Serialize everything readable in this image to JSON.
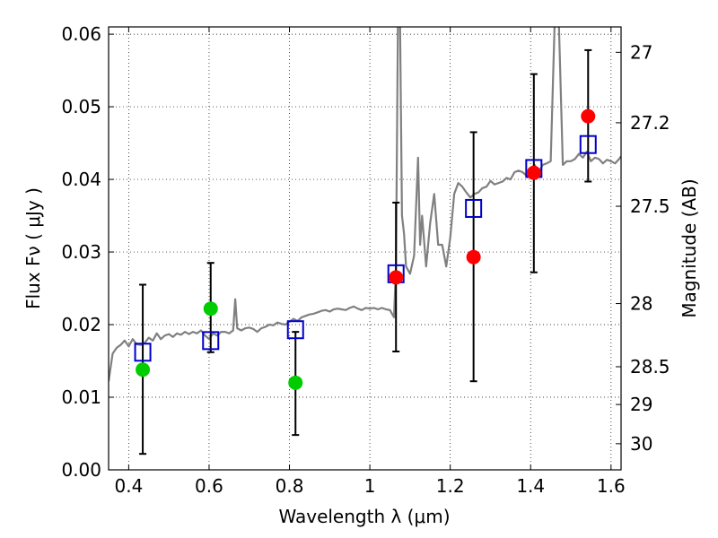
{
  "chart_data": {
    "type": "scatter",
    "xlabel": "Wavelength  λ (μm)",
    "ylabel": "Flux  Fν  ( μJy )",
    "y2label": "Magnitude (AB)",
    "xlim": [
      0.35,
      1.625
    ],
    "ylim": [
      0.0,
      0.061
    ],
    "grid": true,
    "x_ticks": [
      0.4,
      0.6,
      0.8,
      1.0,
      1.2,
      1.4,
      1.6
    ],
    "x_tick_labels": [
      "0.4",
      "0.6",
      "0.8",
      "1",
      "1.2",
      "1.4",
      "1.6"
    ],
    "y_ticks": [
      0.0,
      0.01,
      0.02,
      0.03,
      0.04,
      0.05,
      0.06
    ],
    "y_tick_labels": [
      "0.00",
      "0.01",
      "0.02",
      "0.03",
      "0.04",
      "0.05",
      "0.06"
    ],
    "y2_ticks": [
      {
        "label": "27",
        "flux": 0.0575
      },
      {
        "label": "27.2",
        "flux": 0.0478
      },
      {
        "label": "27.5",
        "flux": 0.0363
      },
      {
        "label": "28",
        "flux": 0.0229
      },
      {
        "label": "28.5",
        "flux": 0.0142
      },
      {
        "label": "29",
        "flux": 0.009
      },
      {
        "label": "30",
        "flux": 0.0036
      }
    ],
    "series": [
      {
        "style": "line",
        "color": "#808080",
        "x": [
          0.35,
          0.36,
          0.37,
          0.38,
          0.39,
          0.4,
          0.41,
          0.42,
          0.43,
          0.44,
          0.45,
          0.46,
          0.47,
          0.48,
          0.49,
          0.5,
          0.51,
          0.52,
          0.53,
          0.54,
          0.55,
          0.56,
          0.57,
          0.58,
          0.59,
          0.6,
          0.61,
          0.62,
          0.63,
          0.64,
          0.65,
          0.66,
          0.665,
          0.67,
          0.68,
          0.69,
          0.7,
          0.71,
          0.72,
          0.73,
          0.74,
          0.75,
          0.76,
          0.77,
          0.78,
          0.79,
          0.8,
          0.81,
          0.82,
          0.83,
          0.84,
          0.85,
          0.86,
          0.87,
          0.88,
          0.89,
          0.9,
          0.91,
          0.92,
          0.93,
          0.94,
          0.95,
          0.96,
          0.97,
          0.98,
          0.99,
          1.0,
          1.01,
          1.02,
          1.03,
          1.04,
          1.05,
          1.06,
          1.065,
          1.07,
          1.075,
          1.08,
          1.085,
          1.09,
          1.1,
          1.11,
          1.12,
          1.125,
          1.13,
          1.14,
          1.15,
          1.16,
          1.17,
          1.18,
          1.19,
          1.2,
          1.21,
          1.22,
          1.23,
          1.24,
          1.25,
          1.26,
          1.27,
          1.28,
          1.29,
          1.3,
          1.31,
          1.32,
          1.33,
          1.34,
          1.35,
          1.36,
          1.37,
          1.38,
          1.39,
          1.4,
          1.41,
          1.42,
          1.43,
          1.44,
          1.45,
          1.46,
          1.47,
          1.48,
          1.49,
          1.5,
          1.51,
          1.52,
          1.53,
          1.54,
          1.55,
          1.56,
          1.57,
          1.58,
          1.59,
          1.6,
          1.61,
          1.62,
          1.625
        ],
        "y": [
          0.0122,
          0.016,
          0.0168,
          0.0172,
          0.0178,
          0.017,
          0.018,
          0.0173,
          0.0172,
          0.0175,
          0.0182,
          0.0178,
          0.0188,
          0.018,
          0.0185,
          0.0187,
          0.0183,
          0.0188,
          0.0186,
          0.019,
          0.0187,
          0.019,
          0.0188,
          0.0192,
          0.0185,
          0.018,
          0.0188,
          0.0185,
          0.019,
          0.019,
          0.0188,
          0.0192,
          0.0235,
          0.0195,
          0.0192,
          0.0195,
          0.0196,
          0.0194,
          0.019,
          0.0195,
          0.0197,
          0.02,
          0.0199,
          0.0203,
          0.0201,
          0.02,
          0.0204,
          0.0208,
          0.0205,
          0.021,
          0.0212,
          0.0214,
          0.0215,
          0.0217,
          0.0219,
          0.022,
          0.0218,
          0.0221,
          0.0222,
          0.0221,
          0.022,
          0.0223,
          0.0225,
          0.0222,
          0.022,
          0.0223,
          0.0222,
          0.0223,
          0.0221,
          0.0223,
          0.0221,
          0.022,
          0.021,
          0.028,
          0.062,
          0.062,
          0.035,
          0.0325,
          0.028,
          0.027,
          0.0295,
          0.043,
          0.031,
          0.035,
          0.028,
          0.034,
          0.038,
          0.031,
          0.031,
          0.028,
          0.032,
          0.038,
          0.0395,
          0.039,
          0.0382,
          0.0375,
          0.038,
          0.0382,
          0.0388,
          0.039,
          0.0398,
          0.0393,
          0.0395,
          0.0397,
          0.0402,
          0.04,
          0.041,
          0.0412,
          0.041,
          0.0405,
          0.0415,
          0.042,
          0.041,
          0.042,
          0.0422,
          0.0425,
          0.062,
          0.062,
          0.042,
          0.0425,
          0.0425,
          0.0428,
          0.0435,
          0.043,
          0.0438,
          0.0425,
          0.043,
          0.0428,
          0.0422,
          0.0427,
          0.0425,
          0.0422,
          0.0428,
          0.0432
        ]
      },
      {
        "style": "square",
        "color": "#0000cc",
        "x": [
          0.435,
          0.604,
          0.815,
          1.065,
          1.258,
          1.408,
          1.543
        ],
        "y": [
          0.0162,
          0.0178,
          0.0193,
          0.027,
          0.036,
          0.0415,
          0.0448
        ]
      },
      {
        "style": "circle",
        "color": "#00cc00",
        "x": [
          0.435,
          0.604,
          0.815
        ],
        "y": [
          0.0138,
          0.0222,
          0.012
        ]
      },
      {
        "style": "circle",
        "color": "#ff0000",
        "x": [
          1.065,
          1.258,
          1.408,
          1.543
        ],
        "y": [
          0.0265,
          0.0293,
          0.0409,
          0.0487
        ]
      }
    ],
    "errorbars": {
      "color": "#000000",
      "x": [
        0.435,
        0.604,
        0.815,
        1.065,
        1.258,
        1.408,
        1.543
      ],
      "low": [
        0.0022,
        0.0162,
        0.0048,
        0.0163,
        0.0122,
        0.0272,
        0.0397
      ],
      "high": [
        0.0255,
        0.0285,
        0.019,
        0.0368,
        0.0465,
        0.0545,
        0.0578
      ]
    }
  }
}
